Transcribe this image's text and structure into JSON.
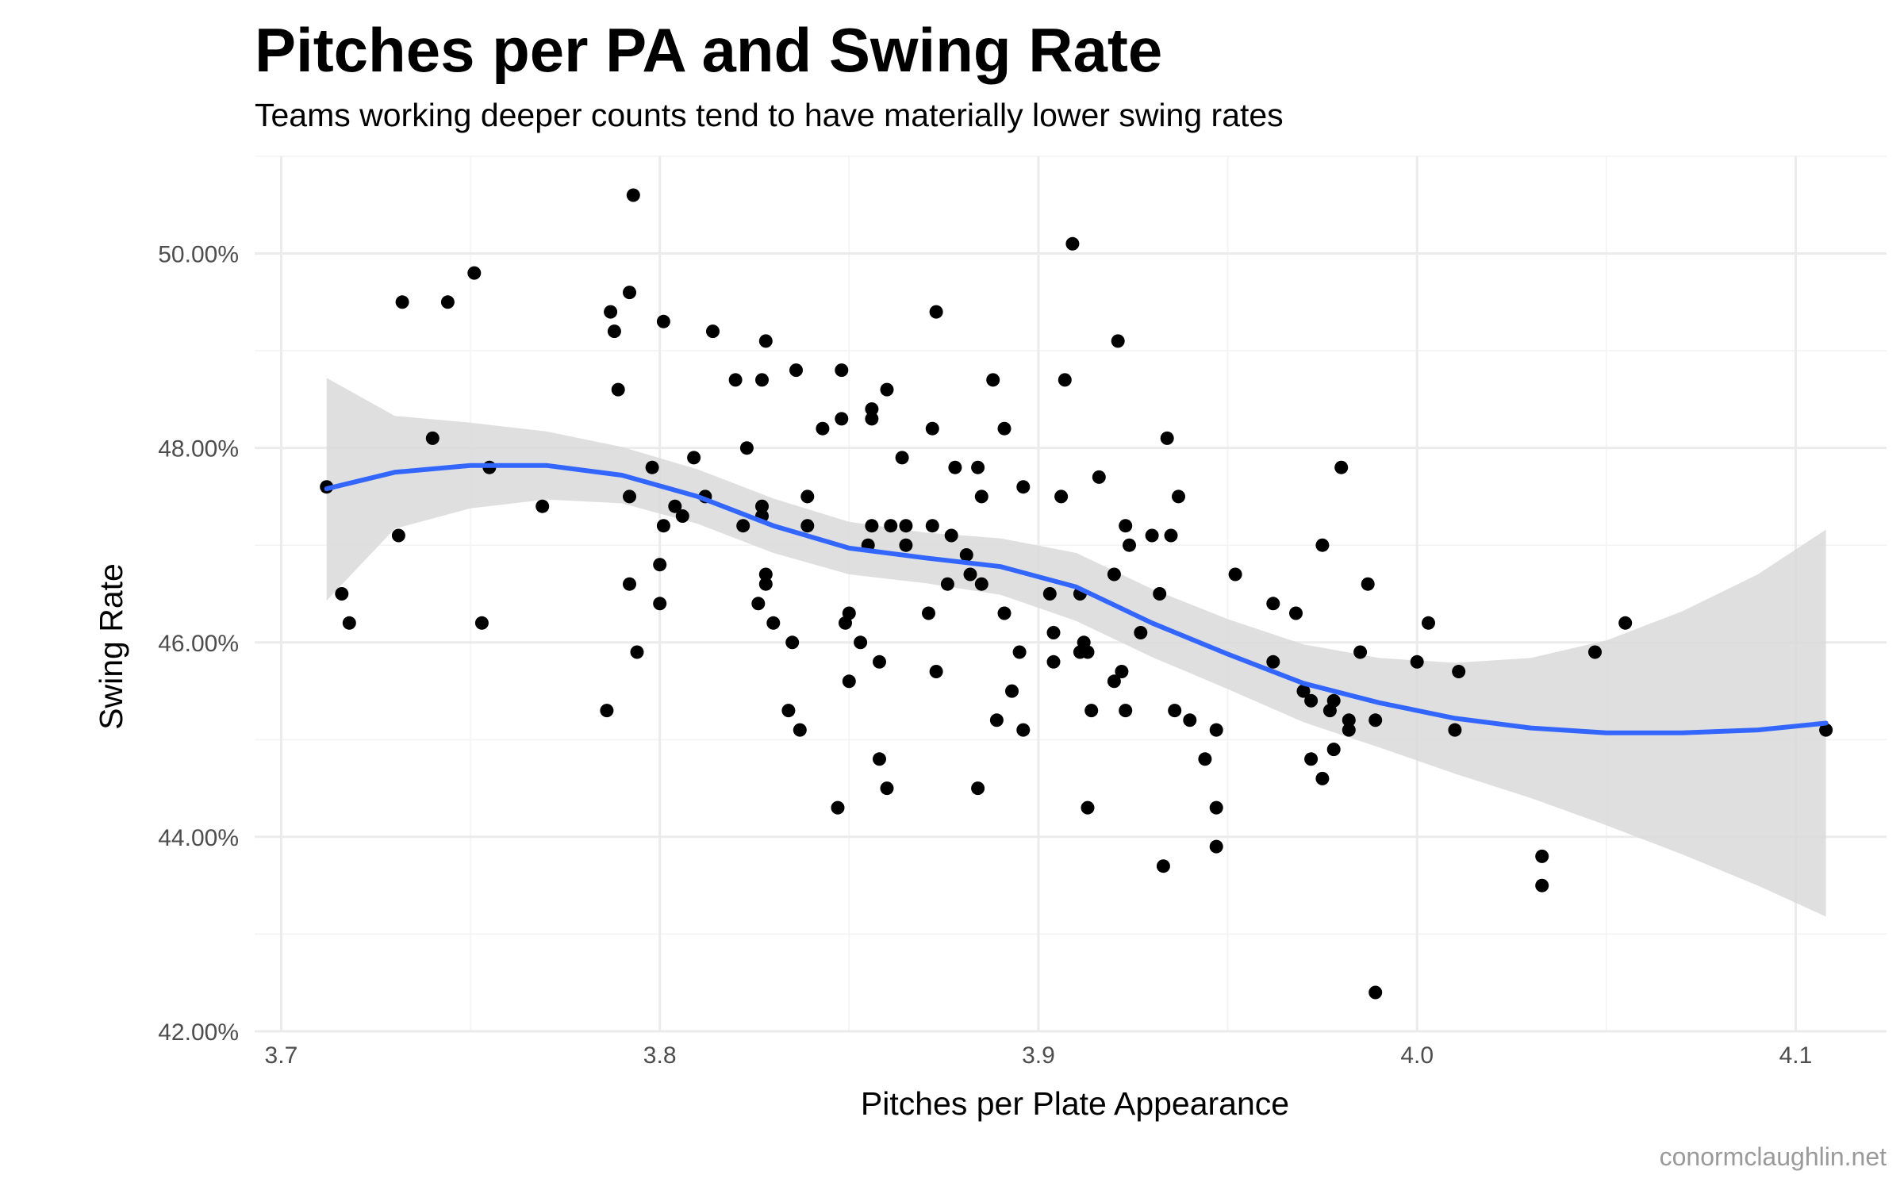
{
  "chart_data": {
    "type": "scatter",
    "title": "Pitches per PA and Swing Rate",
    "subtitle": "Teams working deeper counts tend to have materially lower swing rates",
    "xlabel": "Pitches per Plate Appearance",
    "ylabel": "Swing Rate",
    "caption": "conormclaughlin.net",
    "xlim": [
      3.693,
      4.124
    ],
    "ylim": [
      42.0,
      51.0
    ],
    "x_ticks": [
      3.7,
      3.8,
      3.9,
      4.0,
      4.1
    ],
    "x_tick_labels": [
      "3.7",
      "3.8",
      "3.9",
      "4.0",
      "4.1"
    ],
    "y_ticks": [
      42,
      44,
      46,
      48,
      50
    ],
    "y_tick_labels": [
      "42.00%",
      "44.00%",
      "46.00%",
      "48.00%",
      "50.00%"
    ],
    "grid": true,
    "colors": {
      "points": "#000000",
      "smooth_line": "#3366ff",
      "confidence_band": "#d9d9d9"
    },
    "points": [
      [
        3.712,
        47.6
      ],
      [
        3.716,
        46.5
      ],
      [
        3.718,
        46.2
      ],
      [
        3.731,
        47.1
      ],
      [
        3.732,
        49.5
      ],
      [
        3.74,
        48.1
      ],
      [
        3.744,
        49.5
      ],
      [
        3.751,
        49.8
      ],
      [
        3.753,
        46.2
      ],
      [
        3.755,
        47.8
      ],
      [
        3.769,
        47.4
      ],
      [
        3.786,
        45.3
      ],
      [
        3.787,
        49.4
      ],
      [
        3.788,
        49.2
      ],
      [
        3.789,
        48.6
      ],
      [
        3.792,
        49.6
      ],
      [
        3.792,
        47.5
      ],
      [
        3.792,
        46.6
      ],
      [
        3.793,
        50.6
      ],
      [
        3.794,
        45.9
      ],
      [
        3.798,
        47.8
      ],
      [
        3.8,
        46.8
      ],
      [
        3.801,
        49.3
      ],
      [
        3.801,
        47.2
      ],
      [
        3.8,
        46.4
      ],
      [
        3.804,
        47.4
      ],
      [
        3.806,
        47.3
      ],
      [
        3.809,
        47.9
      ],
      [
        3.812,
        47.5
      ],
      [
        3.814,
        49.2
      ],
      [
        3.82,
        48.7
      ],
      [
        3.822,
        47.2
      ],
      [
        3.823,
        48.0
      ],
      [
        3.826,
        46.4
      ],
      [
        3.827,
        48.7
      ],
      [
        3.827,
        47.4
      ],
      [
        3.827,
        47.3
      ],
      [
        3.828,
        49.1
      ],
      [
        3.828,
        46.7
      ],
      [
        3.828,
        46.6
      ],
      [
        3.83,
        46.2
      ],
      [
        3.834,
        45.3
      ],
      [
        3.835,
        46.0
      ],
      [
        3.836,
        48.8
      ],
      [
        3.837,
        45.1
      ],
      [
        3.839,
        47.5
      ],
      [
        3.839,
        47.2
      ],
      [
        3.843,
        48.2
      ],
      [
        3.847,
        44.3
      ],
      [
        3.848,
        48.3
      ],
      [
        3.848,
        48.8
      ],
      [
        3.849,
        46.2
      ],
      [
        3.85,
        46.3
      ],
      [
        3.85,
        45.6
      ],
      [
        3.853,
        46.0
      ],
      [
        3.855,
        47.0
      ],
      [
        3.856,
        48.4
      ],
      [
        3.856,
        48.3
      ],
      [
        3.856,
        47.2
      ],
      [
        3.858,
        45.8
      ],
      [
        3.858,
        44.8
      ],
      [
        3.86,
        48.6
      ],
      [
        3.86,
        44.5
      ],
      [
        3.861,
        47.2
      ],
      [
        3.864,
        47.9
      ],
      [
        3.865,
        47.2
      ],
      [
        3.865,
        47.0
      ],
      [
        3.871,
        46.3
      ],
      [
        3.872,
        48.2
      ],
      [
        3.872,
        47.2
      ],
      [
        3.873,
        49.4
      ],
      [
        3.873,
        45.7
      ],
      [
        3.876,
        46.6
      ],
      [
        3.877,
        47.1
      ],
      [
        3.878,
        47.8
      ],
      [
        3.881,
        46.9
      ],
      [
        3.882,
        46.7
      ],
      [
        3.884,
        47.8
      ],
      [
        3.884,
        44.5
      ],
      [
        3.885,
        47.5
      ],
      [
        3.885,
        46.6
      ],
      [
        3.888,
        48.7
      ],
      [
        3.889,
        45.2
      ],
      [
        3.891,
        48.2
      ],
      [
        3.891,
        46.3
      ],
      [
        3.893,
        45.5
      ],
      [
        3.895,
        45.9
      ],
      [
        3.896,
        47.6
      ],
      [
        3.896,
        45.1
      ],
      [
        3.903,
        46.5
      ],
      [
        3.904,
        46.1
      ],
      [
        3.904,
        45.8
      ],
      [
        3.906,
        47.5
      ],
      [
        3.907,
        48.7
      ],
      [
        3.909,
        50.1
      ],
      [
        3.911,
        46.5
      ],
      [
        3.911,
        45.9
      ],
      [
        3.912,
        46.0
      ],
      [
        3.913,
        45.9
      ],
      [
        3.913,
        44.3
      ],
      [
        3.914,
        45.3
      ],
      [
        3.916,
        47.7
      ],
      [
        3.92,
        46.7
      ],
      [
        3.92,
        45.6
      ],
      [
        3.921,
        49.1
      ],
      [
        3.922,
        45.7
      ],
      [
        3.923,
        45.3
      ],
      [
        3.923,
        47.2
      ],
      [
        3.924,
        47.0
      ],
      [
        3.927,
        46.1
      ],
      [
        3.93,
        47.1
      ],
      [
        3.932,
        46.5
      ],
      [
        3.933,
        43.7
      ],
      [
        3.934,
        48.1
      ],
      [
        3.935,
        47.1
      ],
      [
        3.936,
        45.3
      ],
      [
        3.937,
        47.5
      ],
      [
        3.94,
        45.2
      ],
      [
        3.944,
        44.8
      ],
      [
        3.947,
        45.1
      ],
      [
        3.947,
        44.3
      ],
      [
        3.947,
        43.9
      ],
      [
        3.952,
        46.7
      ],
      [
        3.962,
        46.4
      ],
      [
        3.962,
        45.8
      ],
      [
        3.968,
        46.3
      ],
      [
        3.97,
        45.5
      ],
      [
        3.972,
        45.4
      ],
      [
        3.972,
        44.8
      ],
      [
        3.975,
        47.0
      ],
      [
        3.975,
        44.6
      ],
      [
        3.977,
        45.3
      ],
      [
        3.978,
        44.9
      ],
      [
        3.978,
        45.4
      ],
      [
        3.98,
        47.8
      ],
      [
        3.982,
        45.2
      ],
      [
        3.982,
        45.1
      ],
      [
        3.985,
        45.9
      ],
      [
        3.987,
        46.6
      ],
      [
        3.989,
        45.2
      ],
      [
        3.989,
        42.4
      ],
      [
        4.0,
        45.8
      ],
      [
        4.003,
        46.2
      ],
      [
        4.01,
        45.1
      ],
      [
        4.011,
        45.7
      ],
      [
        4.033,
        43.8
      ],
      [
        4.033,
        43.5
      ],
      [
        4.047,
        45.9
      ],
      [
        4.055,
        46.2
      ],
      [
        4.108,
        45.1
      ]
    ],
    "smooth": {
      "x": [
        3.712,
        3.73,
        3.75,
        3.77,
        3.79,
        3.81,
        3.83,
        3.85,
        3.87,
        3.89,
        3.91,
        3.93,
        3.95,
        3.97,
        3.99,
        4.01,
        4.03,
        4.05,
        4.07,
        4.09,
        4.108
      ],
      "y": [
        47.58,
        47.75,
        47.82,
        47.82,
        47.72,
        47.5,
        47.2,
        46.97,
        46.87,
        46.78,
        46.57,
        46.2,
        45.88,
        45.58,
        45.38,
        45.22,
        45.12,
        45.07,
        45.07,
        45.1,
        45.17
      ],
      "lower": [
        46.43,
        47.17,
        47.38,
        47.47,
        47.43,
        47.22,
        46.92,
        46.7,
        46.61,
        46.49,
        46.22,
        45.85,
        45.52,
        45.18,
        44.92,
        44.65,
        44.4,
        44.12,
        43.82,
        43.5,
        43.18
      ],
      "upper": [
        48.72,
        48.33,
        48.26,
        48.17,
        48.01,
        47.78,
        47.48,
        47.24,
        47.13,
        47.07,
        46.92,
        46.55,
        46.24,
        45.98,
        45.84,
        45.79,
        45.84,
        46.02,
        46.32,
        46.7,
        47.16
      ]
    }
  }
}
